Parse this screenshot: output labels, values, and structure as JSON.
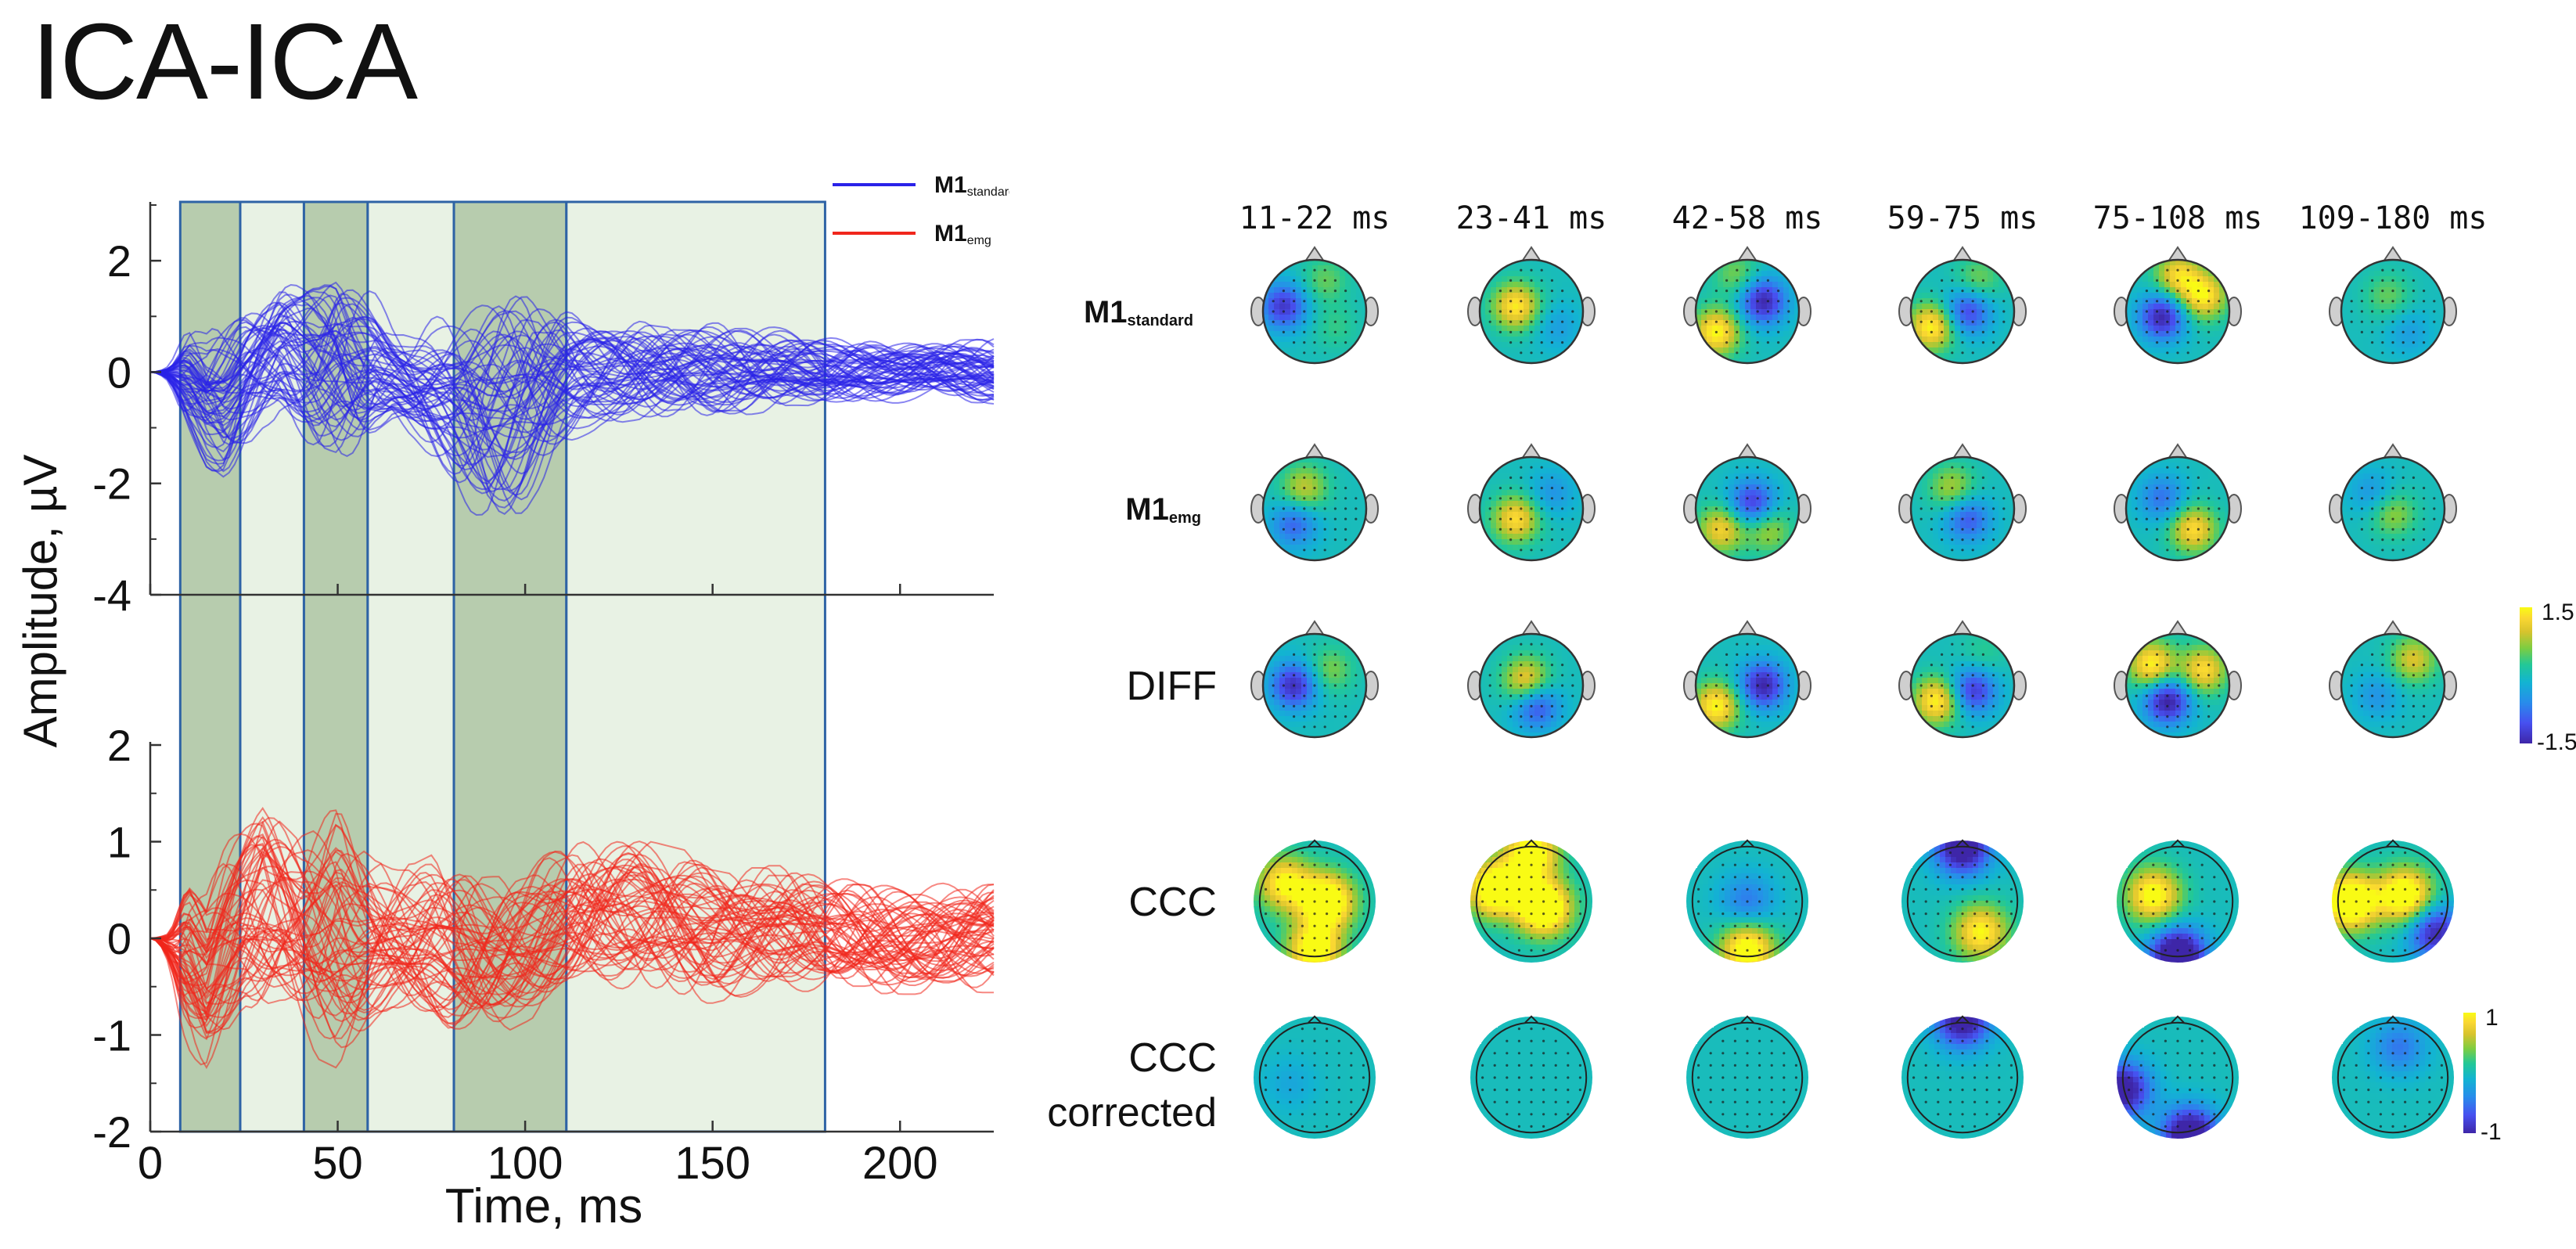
{
  "title": "ICA-ICA",
  "colors": {
    "standard": "#2a22e8",
    "emg": "#f0261c",
    "window_dark": "#b7ccae",
    "window_light": "#e8f2e4",
    "window_border": "#2e63a5"
  },
  "chart_data": [
    {
      "type": "line",
      "name": "time-series",
      "xlabel": "Time, ms",
      "ylabel": "Amplitude, µV",
      "xlim": [
        0,
        225
      ],
      "xticks": [
        "0",
        "50",
        "100",
        "150",
        "200"
      ],
      "legend": {
        "placement": "top-right",
        "entries": [
          {
            "main": "M1",
            "sub": "standard",
            "color": "#2a22e8"
          },
          {
            "main": "M1",
            "sub": "emg",
            "color": "#f0261c"
          }
        ]
      },
      "windows_ms": [
        {
          "start": 8,
          "end": 24,
          "shade": "dark"
        },
        {
          "start": 24,
          "end": 41,
          "shade": "light"
        },
        {
          "start": 41,
          "end": 58,
          "shade": "dark"
        },
        {
          "start": 58,
          "end": 81,
          "shade": "light"
        },
        {
          "start": 81,
          "end": 111,
          "shade": "dark"
        },
        {
          "start": 111,
          "end": 180,
          "shade": "light"
        }
      ],
      "panels": [
        {
          "series_name": "M1 standard",
          "color": "#2a22e8",
          "ylim": [
            -4,
            3
          ],
          "yticks": [
            "2",
            "0",
            "-2",
            "-4"
          ],
          "n_traces": 60,
          "x": [
            0,
            5,
            10,
            15,
            20,
            25,
            30,
            35,
            40,
            45,
            50,
            55,
            60,
            65,
            70,
            75,
            80,
            85,
            90,
            95,
            100,
            105,
            110,
            115,
            120,
            130,
            140,
            150,
            160,
            170,
            180,
            190,
            200,
            210,
            225
          ],
          "envelope_upper": [
            0,
            0.2,
            0.8,
            0.7,
            1.0,
            1.4,
            1.6,
            1.8,
            1.7,
            1.9,
            2.4,
            2.0,
            1.5,
            0.9,
            0.8,
            1.0,
            1.1,
            1.3,
            1.4,
            1.5,
            1.6,
            1.4,
            1.3,
            1.1,
            1.0,
            1.0,
            0.9,
            0.9,
            0.9,
            0.8,
            0.7,
            0.7,
            0.6,
            0.6,
            0.6
          ],
          "envelope_lower": [
            0,
            -0.3,
            -1.2,
            -1.8,
            -2.1,
            -1.6,
            -1.2,
            -1.0,
            -1.4,
            -1.8,
            -2.0,
            -1.7,
            -1.2,
            -0.9,
            -1.2,
            -1.6,
            -2.0,
            -2.6,
            -3.0,
            -3.0,
            -2.8,
            -2.2,
            -1.6,
            -1.2,
            -1.0,
            -0.9,
            -0.8,
            -0.8,
            -0.8,
            -0.7,
            -0.7,
            -0.6,
            -0.6,
            -0.6,
            -0.6
          ]
        },
        {
          "series_name": "M1 emg",
          "color": "#f0261c",
          "ylim": [
            -2,
            2
          ],
          "yticks": [
            "2",
            "1",
            "0",
            "-1",
            "-2"
          ],
          "n_traces": 60,
          "x": [
            0,
            5,
            10,
            15,
            20,
            25,
            30,
            35,
            40,
            45,
            50,
            55,
            60,
            65,
            70,
            75,
            80,
            85,
            90,
            95,
            100,
            105,
            110,
            115,
            120,
            130,
            140,
            150,
            160,
            170,
            180,
            190,
            200,
            210,
            225
          ],
          "envelope_upper": [
            0,
            0.2,
            0.9,
            0.7,
            1.1,
            1.3,
            1.6,
            1.4,
            1.2,
            1.3,
            1.5,
            1.1,
            0.9,
            0.8,
            0.8,
            0.9,
            0.9,
            0.9,
            0.8,
            0.8,
            0.8,
            0.9,
            1.0,
            1.1,
            1.1,
            1.1,
            1.0,
            0.9,
            0.8,
            0.8,
            0.7,
            0.7,
            0.6,
            0.6,
            0.6
          ],
          "envelope_lower": [
            0,
            -0.5,
            -1.2,
            -1.5,
            -1.3,
            -1.0,
            -1.1,
            -1.0,
            -1.1,
            -1.3,
            -1.4,
            -1.2,
            -1.0,
            -0.9,
            -1.0,
            -1.1,
            -1.2,
            -1.2,
            -1.1,
            -1.0,
            -0.9,
            -0.8,
            -0.7,
            -0.7,
            -0.7,
            -0.7,
            -0.7,
            -0.7,
            -0.6,
            -0.6,
            -0.6,
            -0.6,
            -0.6,
            -0.6,
            -0.6
          ]
        }
      ]
    },
    {
      "type": "heatmap",
      "name": "scalp-topographies",
      "time_windows": [
        "11-22 ms",
        "23-41 ms",
        "42-58 ms",
        "59-75 ms",
        "75-108 ms",
        "109-180 ms"
      ],
      "rows": [
        {
          "id": "m1-standard",
          "label": "M1",
          "sub": "standard",
          "bold": true,
          "style": "head",
          "maps": [
            [
              {
                "u": -0.6,
                "v": -0.1,
                "val": -1.3
              },
              {
                "u": 0.4,
                "v": 0.3,
                "val": 0.3
              },
              {
                "u": 0.2,
                "v": -0.6,
                "val": 0.5
              }
            ],
            [
              {
                "u": -0.3,
                "v": -0.1,
                "val": 1.4
              },
              {
                "u": 0.5,
                "v": 0.3,
                "val": -0.4
              }
            ],
            [
              {
                "u": 0.3,
                "v": -0.2,
                "val": -1.5
              },
              {
                "u": -0.6,
                "v": 0.4,
                "val": 1.5
              },
              {
                "u": -0.2,
                "v": -0.7,
                "val": 0.6
              }
            ],
            [
              {
                "u": 0.1,
                "v": 0.0,
                "val": -1.2
              },
              {
                "u": -0.6,
                "v": 0.3,
                "val": 1.5
              },
              {
                "u": 0.3,
                "v": -0.6,
                "val": 0.6
              }
            ],
            [
              {
                "u": -0.3,
                "v": 0.1,
                "val": -1.5
              },
              {
                "u": 0.5,
                "v": -0.3,
                "val": 1.4
              },
              {
                "u": 0.0,
                "v": -0.7,
                "val": 1.2
              }
            ],
            [
              {
                "u": -0.1,
                "v": -0.3,
                "val": 0.5
              },
              {
                "u": 0.3,
                "v": 0.4,
                "val": -0.4
              }
            ]
          ]
        },
        {
          "id": "m1-emg",
          "label": "M1",
          "sub": "emg",
          "bold": true,
          "style": "head",
          "maps": [
            [
              {
                "u": -0.2,
                "v": -0.4,
                "val": 0.9
              },
              {
                "u": -0.4,
                "v": 0.3,
                "val": -0.9
              }
            ],
            [
              {
                "u": -0.3,
                "v": 0.2,
                "val": 1.3
              },
              {
                "u": 0.4,
                "v": -0.3,
                "val": -0.5
              }
            ],
            [
              {
                "u": 0.1,
                "v": -0.1,
                "val": -1.3
              },
              {
                "u": -0.5,
                "v": 0.4,
                "val": 1.2
              },
              {
                "u": 0.4,
                "v": 0.4,
                "val": 0.8
              }
            ],
            [
              {
                "u": -0.2,
                "v": -0.4,
                "val": 0.8
              },
              {
                "u": 0.1,
                "v": 0.2,
                "val": -1.0
              }
            ],
            [
              {
                "u": 0.3,
                "v": 0.4,
                "val": 1.3
              },
              {
                "u": -0.3,
                "v": -0.2,
                "val": -0.8
              }
            ],
            [
              {
                "u": 0.0,
                "v": 0.1,
                "val": 0.7
              },
              {
                "u": -0.4,
                "v": -0.3,
                "val": -0.5
              }
            ]
          ]
        },
        {
          "id": "diff",
          "label": "DIFF",
          "sub": "",
          "bold": false,
          "style": "head",
          "maps": [
            [
              {
                "u": -0.4,
                "v": 0.0,
                "val": -1.4
              },
              {
                "u": 0.3,
                "v": -0.3,
                "val": 0.6
              }
            ],
            [
              {
                "u": -0.1,
                "v": -0.1,
                "val": 1.2
              },
              {
                "u": 0.1,
                "v": 0.4,
                "val": -1.1
              }
            ],
            [
              {
                "u": 0.3,
                "v": 0.0,
                "val": -1.5
              },
              {
                "u": -0.6,
                "v": 0.4,
                "val": 1.5
              }
            ],
            [
              {
                "u": 0.2,
                "v": 0.1,
                "val": -1.3
              },
              {
                "u": -0.5,
                "v": 0.3,
                "val": 1.5
              },
              {
                "u": 0.4,
                "v": -0.6,
                "val": 0.3
              }
            ],
            [
              {
                "u": -0.2,
                "v": 0.3,
                "val": -1.6
              },
              {
                "u": -0.5,
                "v": -0.4,
                "val": 1.5
              },
              {
                "u": 0.5,
                "v": -0.3,
                "val": 1.3
              }
            ],
            [
              {
                "u": 0.4,
                "v": -0.5,
                "val": 1.0
              },
              {
                "u": -0.3,
                "v": 0.2,
                "val": -0.5
              }
            ]
          ]
        },
        {
          "id": "ccc",
          "label": "CCC",
          "sub": "",
          "bold": false,
          "style": "disc",
          "maps": [
            [
              {
                "u": 0.2,
                "v": 0.0,
                "val": 1.4
              },
              {
                "u": -0.5,
                "v": -0.3,
                "val": 1.0
              },
              {
                "u": 0.0,
                "v": 0.8,
                "val": 1.2
              }
            ],
            [
              {
                "u": 0.2,
                "v": 0.1,
                "val": 1.5
              },
              {
                "u": -0.6,
                "v": -0.2,
                "val": 1.4
              },
              {
                "u": 0.0,
                "v": -0.8,
                "val": 1.2
              }
            ],
            [
              {
                "u": 0.0,
                "v": 0.8,
                "val": 1.2
              },
              {
                "u": 0.0,
                "v": 0.0,
                "val": -0.5
              }
            ],
            [
              {
                "u": 0.0,
                "v": -0.9,
                "val": -1.3
              },
              {
                "u": 0.3,
                "v": 0.5,
                "val": 1.0
              }
            ],
            [
              {
                "u": 0.0,
                "v": 0.9,
                "val": -1.5
              },
              {
                "u": -0.4,
                "v": -0.1,
                "val": 1.1
              }
            ],
            [
              {
                "u": -0.7,
                "v": 0.0,
                "val": 1.5
              },
              {
                "u": 0.2,
                "v": -0.1,
                "val": 1.3
              },
              {
                "u": 0.7,
                "v": 0.5,
                "val": -1.0
              }
            ]
          ]
        },
        {
          "id": "ccc-corrected",
          "label": "CCC",
          "label2": "corrected",
          "sub": "",
          "bold": false,
          "style": "disc",
          "maps": [
            [
              {
                "u": -0.4,
                "v": 0.1,
                "val": -0.2
              }
            ],
            [],
            [],
            [
              {
                "u": 0.0,
                "v": -0.95,
                "val": -1.2
              }
            ],
            [
              {
                "u": -0.9,
                "v": 0.2,
                "val": -1.2
              },
              {
                "u": 0.2,
                "v": 0.95,
                "val": -1.4
              }
            ],
            [
              {
                "u": 0.1,
                "v": -0.5,
                "val": -0.5
              }
            ]
          ]
        }
      ],
      "colorbars": [
        {
          "rows": [
            "m1-standard",
            "m1-emg",
            "diff"
          ],
          "max_label": "1.5",
          "min_label": "-1.5",
          "vmin": -1.5,
          "vmax": 1.5
        },
        {
          "rows": [
            "ccc",
            "ccc-corrected"
          ],
          "max_label": "1",
          "min_label": "-1",
          "vmin": -1,
          "vmax": 1
        }
      ]
    }
  ]
}
